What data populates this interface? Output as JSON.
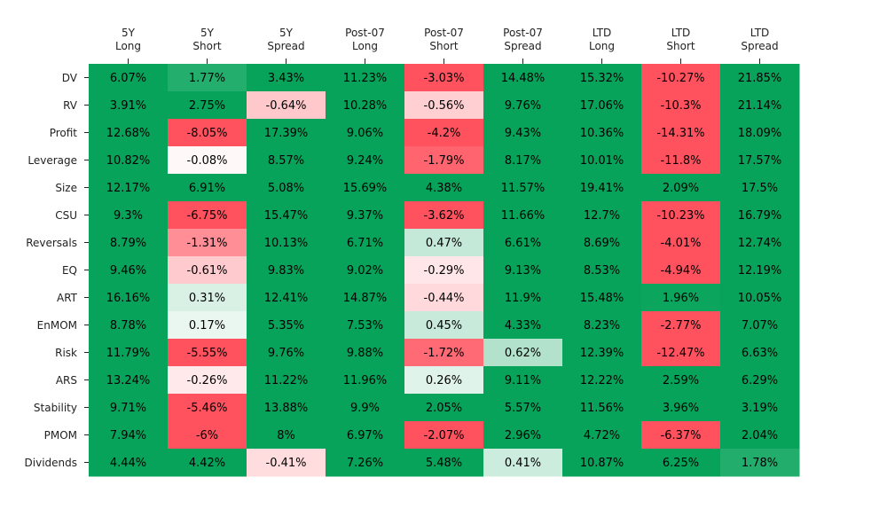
{
  "chart_data": {
    "type": "heatmap",
    "title": "",
    "xlabel": "",
    "ylabel": "",
    "columns": [
      [
        "5Y",
        "Long"
      ],
      [
        "5Y",
        "Short"
      ],
      [
        "5Y",
        "Spread"
      ],
      [
        "Post-07",
        "Long"
      ],
      [
        "Post-07",
        "Short"
      ],
      [
        "Post-07",
        "Spread"
      ],
      [
        "LTD",
        "Long"
      ],
      [
        "LTD",
        "Short"
      ],
      [
        "LTD",
        "Spread"
      ]
    ],
    "rows": [
      "DV",
      "RV",
      "Profit",
      "Leverage",
      "Size",
      "CSU",
      "Reversals",
      "EQ",
      "ART",
      "EnMOM",
      "Risk",
      "ARS",
      "Stability",
      "PMOM",
      "Dividends"
    ],
    "values": [
      [
        6.07,
        1.77,
        3.43,
        11.23,
        -3.03,
        14.48,
        15.32,
        -10.27,
        21.85
      ],
      [
        3.91,
        2.75,
        -0.64,
        10.28,
        -0.56,
        9.76,
        17.06,
        -10.3,
        21.14
      ],
      [
        12.68,
        -8.05,
        17.39,
        9.06,
        -4.2,
        9.43,
        10.36,
        -14.31,
        18.09
      ],
      [
        10.82,
        -0.08,
        8.57,
        9.24,
        -1.79,
        8.17,
        10.01,
        -11.8,
        17.57
      ],
      [
        12.17,
        6.91,
        5.08,
        15.69,
        4.38,
        11.57,
        19.41,
        2.09,
        17.5
      ],
      [
        9.3,
        -6.75,
        15.47,
        9.37,
        -3.62,
        11.66,
        12.7,
        -10.23,
        16.79
      ],
      [
        8.79,
        -1.31,
        10.13,
        6.71,
        0.47,
        6.61,
        8.69,
        -4.01,
        12.74
      ],
      [
        9.46,
        -0.61,
        9.83,
        9.02,
        -0.29,
        9.13,
        8.53,
        -4.94,
        12.19
      ],
      [
        16.16,
        0.31,
        12.41,
        14.87,
        -0.44,
        11.9,
        15.48,
        1.96,
        10.05
      ],
      [
        8.78,
        0.17,
        5.35,
        7.53,
        0.45,
        4.33,
        8.23,
        -2.77,
        7.07
      ],
      [
        11.79,
        -5.55,
        9.76,
        9.88,
        -1.72,
        0.62,
        12.39,
        -12.47,
        6.63
      ],
      [
        13.24,
        -0.26,
        11.22,
        11.96,
        0.26,
        9.11,
        12.22,
        2.59,
        6.29
      ],
      [
        9.71,
        -5.46,
        13.88,
        9.9,
        2.05,
        5.57,
        11.56,
        3.96,
        3.19
      ],
      [
        7.94,
        -6.0,
        8.0,
        6.97,
        -2.07,
        2.96,
        4.72,
        -6.37,
        2.04
      ],
      [
        4.44,
        4.42,
        -0.41,
        7.26,
        5.48,
        0.41,
        10.87,
        6.25,
        1.78
      ]
    ],
    "value_suffix": "%",
    "colors": {
      "positive": "#07a35a",
      "negative": "#ff525e",
      "neutral": "#ffffff"
    },
    "color_saturation_abs": 2.0,
    "grid": false,
    "legend": "none"
  }
}
